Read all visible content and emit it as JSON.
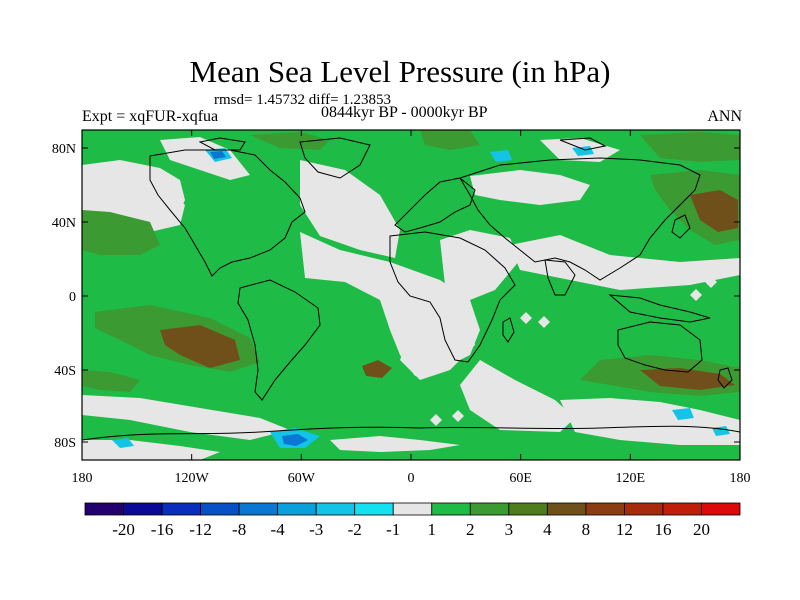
{
  "title": "Mean Sea Level Pressure (in hPa)",
  "stats": "rmsd= 1.45732 diff= 1.23853",
  "experiment": "Expt = xqFUR-xqfua",
  "period": "0844kyr BP - 0000kyr BP",
  "season": "ANN",
  "axes": {
    "lat_ticks": [
      "80N",
      "40N",
      "0",
      "40S",
      "80S"
    ],
    "lon_ticks": [
      "180",
      "120W",
      "60W",
      "0",
      "60E",
      "120E",
      "180"
    ]
  },
  "colorbar": {
    "labels": [
      "-20",
      "-16",
      "-12",
      "-8",
      "-4",
      "-3",
      "-2",
      "-1",
      "1",
      "2",
      "3",
      "4",
      "8",
      "12",
      "16",
      "20"
    ],
    "colors": [
      "#24006e",
      "#0a0a96",
      "#0a2dbe",
      "#0650c8",
      "#0a78d2",
      "#0aa0dc",
      "#14c4e6",
      "#14e1f0",
      "#e6e6e6",
      "#1fbb47",
      "#3c9a32",
      "#4f7d1e",
      "#70501a",
      "#8c3c12",
      "#a82a0c",
      "#c01e0a",
      "#dc0a0a"
    ]
  },
  "map_colors": {
    "near_zero": "#e6e6e6",
    "one_to_two": "#1fbb47",
    "two_to_three": "#3c9a32",
    "three_to_four": "#4f7d1e",
    "four_to_eight": "#70501a",
    "neg_two": "#14c4e6",
    "neg_three": "#0aa0dc",
    "coast": "#000000"
  }
}
